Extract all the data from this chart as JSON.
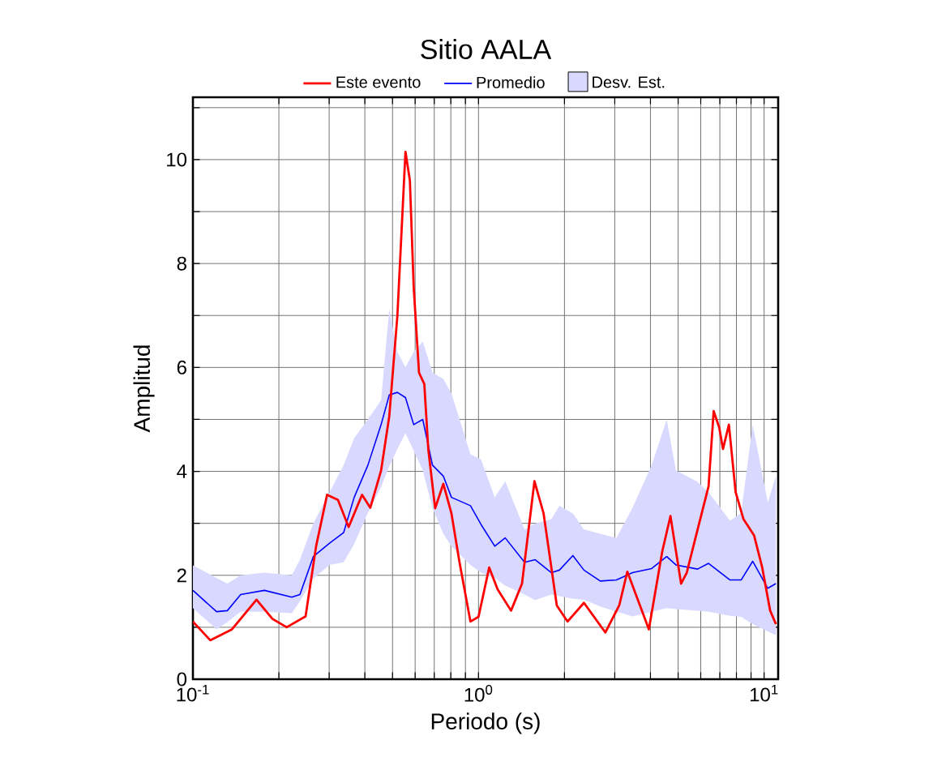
{
  "chart_data": {
    "type": "line",
    "title": "Sitio AALA",
    "xlabel": "Periodo (s)",
    "ylabel": "Amplitud",
    "log": "x",
    "grid": true,
    "legend": "top",
    "annotations": [
      "Desv. Est."
    ],
    "xlim": [
      0.1,
      11.2
    ],
    "ylim": [
      0,
      11.2
    ],
    "xticks": [
      {
        "value": 0.1,
        "label": "10$^{-1}$"
      },
      {
        "value": 0.2,
        "label": null
      },
      {
        "value": 0.3,
        "label": null
      },
      {
        "value": 0.4,
        "label": null
      },
      {
        "value": 0.5,
        "label": null
      },
      {
        "value": 0.6,
        "label": null
      },
      {
        "value": 0.7,
        "label": null
      },
      {
        "value": 0.8,
        "label": null
      },
      {
        "value": 0.9,
        "label": null
      },
      {
        "value": 1,
        "label": "10$^{0}$"
      },
      {
        "value": 2,
        "label": null
      },
      {
        "value": 3,
        "label": null
      },
      {
        "value": 4,
        "label": null
      },
      {
        "value": 5,
        "label": null
      },
      {
        "value": 6,
        "label": null
      },
      {
        "value": 7,
        "label": null
      },
      {
        "value": 8,
        "label": null
      },
      {
        "value": 9,
        "label": null
      },
      {
        "value": 10,
        "label": "10$^{1}$"
      }
    ],
    "yticks": [
      0,
      {
        "value": 1,
        "label": null
      },
      2,
      {
        "value": 3,
        "label": null
      },
      4,
      {
        "value": 5,
        "label": null
      },
      6,
      {
        "value": 7,
        "label": null
      },
      8,
      {
        "value": 9,
        "label": null
      },
      10,
      {
        "value": 11,
        "label": null
      }
    ],
    "series": [
      {
        "name": "Este evento",
        "color": "#ff0000",
        "x": [
          0.1,
          0.115,
          0.137,
          0.167,
          0.19,
          0.213,
          0.248,
          0.27,
          0.295,
          0.322,
          0.351,
          0.391,
          0.418,
          0.456,
          0.487,
          0.52,
          0.555,
          0.575,
          0.593,
          0.619,
          0.646,
          0.667,
          0.705,
          0.753,
          0.804,
          0.858,
          0.937,
          1.0,
          1.09,
          1.166,
          1.3,
          1.42,
          1.57,
          1.69,
          1.88,
          2.05,
          2.34,
          2.78,
          3.11,
          3.32,
          3.95,
          4.4,
          4.7,
          5.12,
          5.36,
          5.72,
          6.39,
          6.66,
          6.96,
          7.18,
          7.53,
          7.95,
          8.47,
          9.22,
          9.85,
          10.5,
          11.0
        ],
        "values": [
          1.11,
          0.75,
          0.96,
          1.53,
          1.16,
          1.0,
          1.21,
          2.56,
          3.55,
          3.45,
          2.93,
          3.55,
          3.3,
          4.02,
          5.06,
          7.0,
          10.15,
          9.6,
          7.55,
          5.9,
          5.68,
          4.43,
          3.29,
          3.76,
          3.19,
          2.25,
          1.11,
          1.2,
          2.15,
          1.73,
          1.32,
          1.84,
          3.81,
          3.19,
          1.42,
          1.11,
          1.47,
          0.9,
          1.42,
          2.07,
          0.96,
          2.46,
          3.14,
          1.84,
          2.05,
          2.67,
          3.71,
          5.16,
          4.85,
          4.43,
          4.9,
          3.6,
          3.08,
          2.77,
          2.15,
          1.32,
          1.06
        ]
      },
      {
        "name": "Promedio",
        "color": "#0000ff",
        "x": [
          0.1,
          0.121,
          0.132,
          0.147,
          0.178,
          0.222,
          0.237,
          0.264,
          0.301,
          0.337,
          0.367,
          0.41,
          0.456,
          0.487,
          0.52,
          0.555,
          0.593,
          0.638,
          0.69,
          0.753,
          0.804,
          0.937,
          1.02,
          1.14,
          1.24,
          1.45,
          1.58,
          1.8,
          1.92,
          2.14,
          2.34,
          2.67,
          3.04,
          3.46,
          4.04,
          4.56,
          4.91,
          5.85,
          6.39,
          7.6,
          8.31,
          9.12,
          10.3,
          11.0
        ],
        "values": [
          1.71,
          1.3,
          1.32,
          1.63,
          1.71,
          1.58,
          1.63,
          2.36,
          2.62,
          2.82,
          3.5,
          4.12,
          4.9,
          5.47,
          5.52,
          5.42,
          4.9,
          5.0,
          4.12,
          3.91,
          3.5,
          3.34,
          2.98,
          2.56,
          2.72,
          2.25,
          2.3,
          2.05,
          2.1,
          2.38,
          2.1,
          1.89,
          1.91,
          2.05,
          2.13,
          2.36,
          2.2,
          2.12,
          2.23,
          1.91,
          1.91,
          2.27,
          1.75,
          1.84
        ],
        "lower": [
          1.37,
          0.96,
          1.1,
          1.3,
          1.3,
          1.27,
          1.5,
          1.94,
          2.2,
          2.25,
          2.6,
          3.2,
          3.7,
          4.1,
          4.43,
          4.74,
          4.4,
          4.02,
          3.29,
          2.8,
          2.56,
          2.2,
          2.05,
          1.95,
          1.8,
          1.63,
          1.52,
          1.63,
          1.6,
          1.55,
          1.53,
          1.4,
          1.3,
          1.21,
          1.3,
          1.37,
          1.35,
          1.32,
          1.3,
          1.22,
          1.2,
          1.06,
          0.92,
          0.85
        ],
        "upper": [
          2.19,
          1.95,
          1.84,
          2.0,
          2.05,
          2.0,
          2.3,
          3.0,
          3.6,
          4.12,
          4.64,
          5.0,
          5.37,
          7.13,
          6.3,
          6.0,
          6.3,
          6.5,
          5.9,
          5.78,
          5.5,
          4.33,
          4.23,
          3.5,
          3.81,
          2.88,
          3.0,
          3.08,
          3.34,
          3.19,
          2.88,
          2.8,
          2.72,
          3.3,
          4.12,
          5.0,
          4.02,
          3.8,
          3.6,
          3.05,
          3.2,
          4.9,
          3.4,
          3.91
        ]
      }
    ]
  }
}
